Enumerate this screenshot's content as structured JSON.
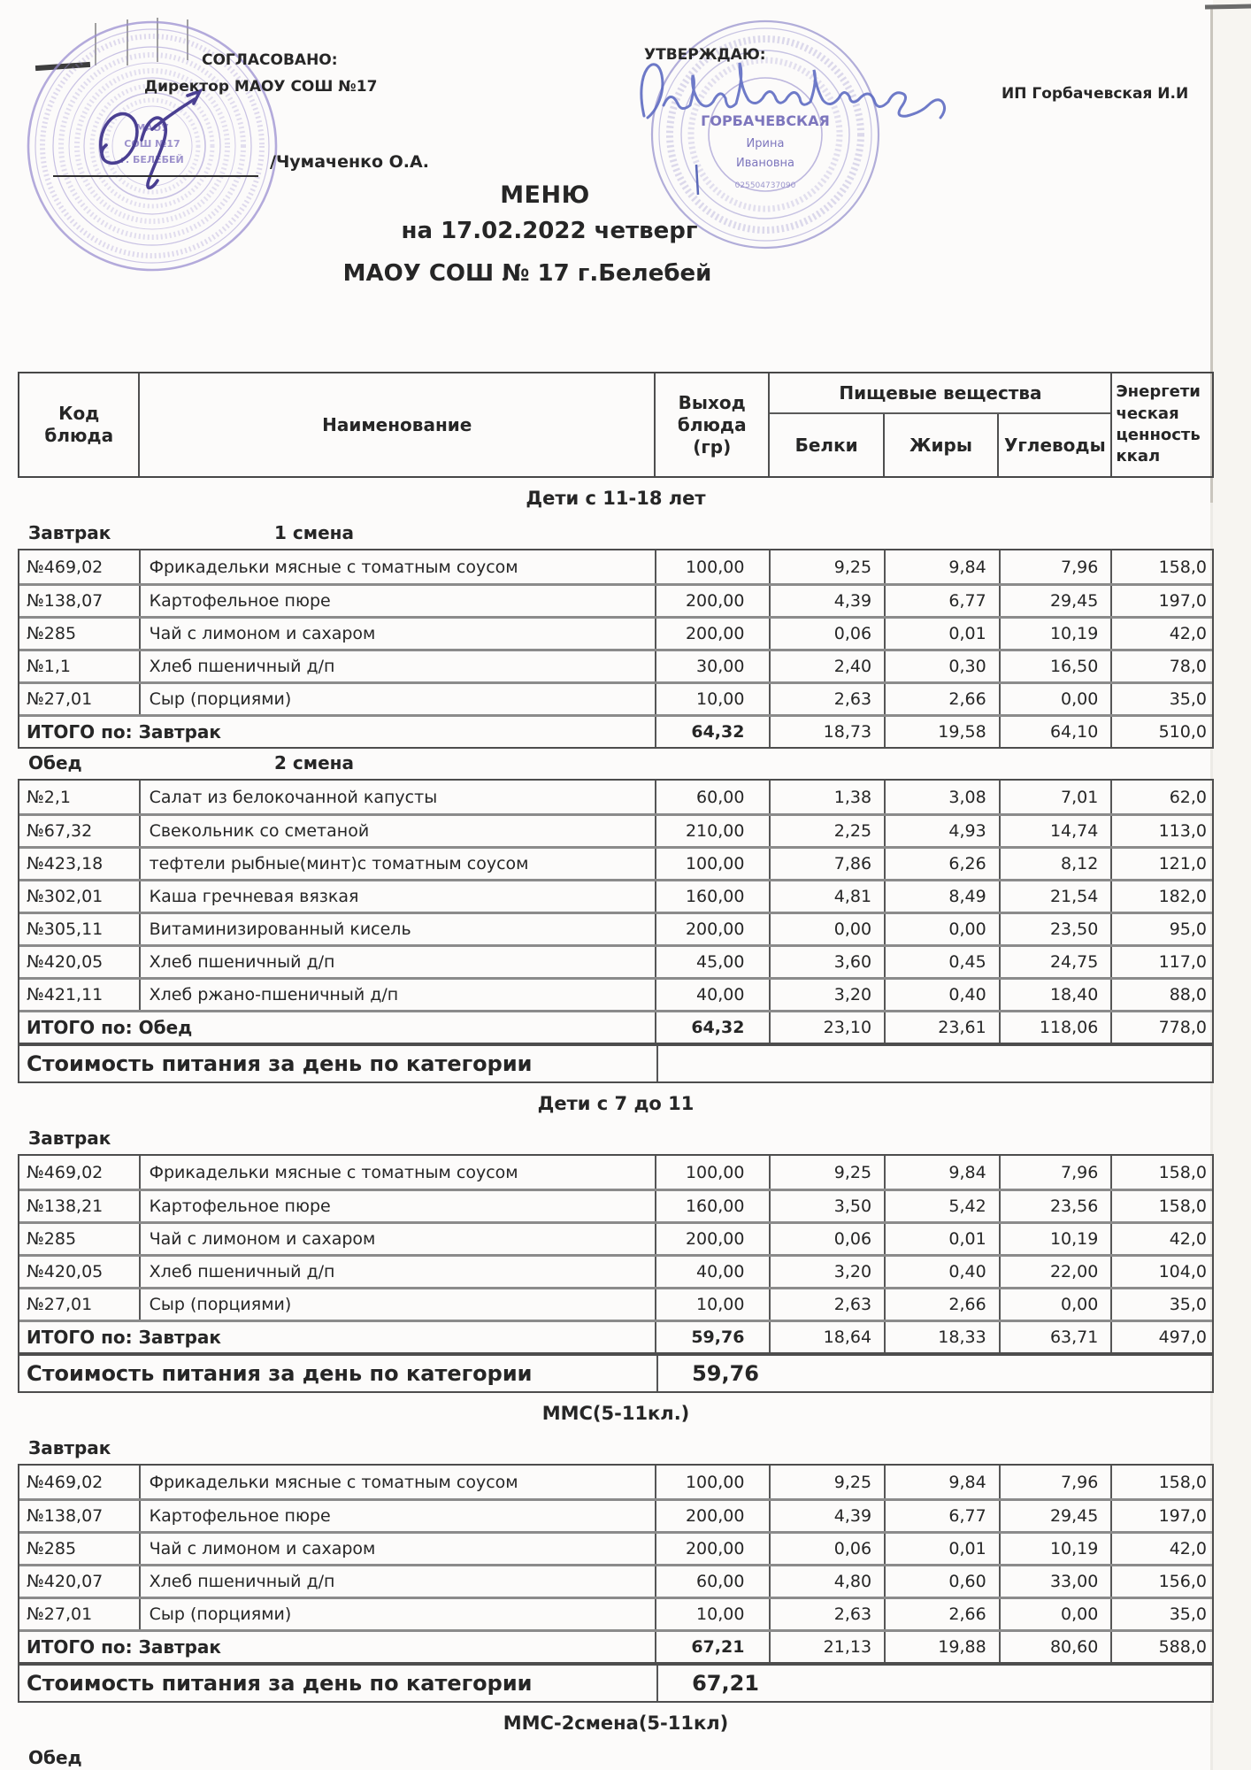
{
  "header": {
    "agreed_line1": "СОГЛАСОВАНО:",
    "agreed_line2": "Директор МАОУ СОШ №17",
    "agreed_signature": "/Чумаченко О.А.",
    "approve_label": "УТВЕРЖДАЮ:",
    "approve_entity": "ИП Горбачевская И.И",
    "left_stamp_lines": [
      "МАОУ",
      "СОШ №17",
      "г. БЕЛЕБЕЙ"
    ],
    "right_stamp_lines": [
      "ГОРБАЧЕВСКАЯ",
      "Ирина",
      "Ивановна"
    ],
    "right_stamp_inn": "025504737090"
  },
  "title": {
    "line1": "МЕНЮ",
    "line2": "на 17.02.2022  четверг",
    "line3": "МАОУ СОШ № 17 г.Белебей"
  },
  "table": {
    "headers": {
      "code": "Код\nблюда",
      "name": "Наименование",
      "output": "Выход\nблюда\n(гр)",
      "nutrients": "Пищевые вещества",
      "protein": "Белки",
      "fat": "Жиры",
      "carbs": "Углеводы",
      "energy": "Энергети\nческая\nценность\nккал"
    },
    "sections": [
      {
        "category": "Дети с 11-18 лет",
        "meals": [
          {
            "meal": "Завтрак",
            "shift": "1 смена",
            "rows": [
              [
                "№469,02",
                "Фрикадельки мясные с томатным соусом",
                "100,00",
                "9,25",
                "9,84",
                "7,96",
                "158,0"
              ],
              [
                "№138,07",
                "Картофельное  пюре",
                "200,00",
                "4,39",
                "6,77",
                "29,45",
                "197,0"
              ],
              [
                "№285",
                "Чай с лимоном и сахаром",
                "200,00",
                "0,06",
                "0,01",
                "10,19",
                "42,0"
              ],
              [
                "№1,1",
                "Хлеб пшеничный д/п",
                "30,00",
                "2,40",
                "0,30",
                "16,50",
                "78,0"
              ],
              [
                "№27,01",
                "Сыр (порциями)",
                "10,00",
                "2,63",
                "2,66",
                "0,00",
                "35,0"
              ]
            ],
            "total": {
              "label": "ИТОГО по: Завтрак",
              "values": [
                "64,32",
                "18,73",
                "19,58",
                "64,10",
                "510,0"
              ]
            }
          },
          {
            "meal": "Обед",
            "shift": "2 смена",
            "rows": [
              [
                "№2,1",
                "Салат из белокочанной капусты",
                "60,00",
                "1,38",
                "3,08",
                "7,01",
                "62,0"
              ],
              [
                "№67,32",
                "Свекольник  со  сметаной",
                "210,00",
                "2,25",
                "4,93",
                "14,74",
                "113,0"
              ],
              [
                "№423,18",
                "тефтели  рыбные(минт)с томатным соусом",
                "100,00",
                "7,86",
                "6,26",
                "8,12",
                "121,0"
              ],
              [
                "№302,01",
                "Каша гречневая вязкая",
                "160,00",
                "4,81",
                "8,49",
                "21,54",
                "182,0"
              ],
              [
                "№305,11",
                "Витаминизированный кисель",
                "200,00",
                "0,00",
                "0,00",
                "23,50",
                "95,0"
              ],
              [
                "№420,05",
                "Хлеб пшеничный д/п",
                "45,00",
                "3,60",
                "0,45",
                "24,75",
                "117,0"
              ],
              [
                "№421,11",
                "Хлеб ржано-пшеничный д/п",
                "40,00",
                "3,20",
                "0,40",
                "18,40",
                "88,0"
              ]
            ],
            "total": {
              "label": "ИТОГО по: Обед",
              "values": [
                "64,32",
                "23,10",
                "23,61",
                "118,06",
                "778,0"
              ]
            }
          }
        ],
        "cost": {
          "label": "Стоимость питания за день по категории",
          "value": ""
        }
      },
      {
        "category": "Дети с 7 до 11",
        "meals": [
          {
            "meal": "Завтрак",
            "shift": "",
            "rows": [
              [
                "№469,02",
                "Фрикадельки мясные с томатным соусом",
                "100,00",
                "9,25",
                "9,84",
                "7,96",
                "158,0"
              ],
              [
                "№138,21",
                "Картофельное  пюре",
                "160,00",
                "3,50",
                "5,42",
                "23,56",
                "158,0"
              ],
              [
                "№285",
                "Чай с лимоном и сахаром",
                "200,00",
                "0,06",
                "0,01",
                "10,19",
                "42,0"
              ],
              [
                "№420,05",
                "Хлеб пшеничный д/п",
                "40,00",
                "3,20",
                "0,40",
                "22,00",
                "104,0"
              ],
              [
                "№27,01",
                "Сыр (порциями)",
                "10,00",
                "2,63",
                "2,66",
                "0,00",
                "35,0"
              ]
            ],
            "total": {
              "label": "ИТОГО по: Завтрак",
              "values": [
                "59,76",
                "18,64",
                "18,33",
                "63,71",
                "497,0"
              ]
            }
          }
        ],
        "cost": {
          "label": "Стоимость питания за день по категории",
          "value": "59,76"
        }
      },
      {
        "category": "ММС(5-11кл.)",
        "meals": [
          {
            "meal": "Завтрак",
            "shift": "",
            "rows": [
              [
                "№469,02",
                "Фрикадельки мясные с томатным соусом",
                "100,00",
                "9,25",
                "9,84",
                "7,96",
                "158,0"
              ],
              [
                "№138,07",
                "Картофельное  пюре",
                "200,00",
                "4,39",
                "6,77",
                "29,45",
                "197,0"
              ],
              [
                "№285",
                "Чай с лимоном и сахаром",
                "200,00",
                "0,06",
                "0,01",
                "10,19",
                "42,0"
              ],
              [
                "№420,07",
                "Хлеб пшеничный д/п",
                "60,00",
                "4,80",
                "0,60",
                "33,00",
                "156,0"
              ],
              [
                "№27,01",
                "Сыр (порциями)",
                "10,00",
                "2,63",
                "2,66",
                "0,00",
                "35,0"
              ]
            ],
            "total": {
              "label": "ИТОГО по: Завтрак",
              "values": [
                "67,21",
                "21,13",
                "19,88",
                "80,60",
                "588,0"
              ]
            }
          }
        ],
        "cost": {
          "label": "Стоимость питания за день по категории",
          "value": "67,21"
        }
      },
      {
        "category": "ММС-2смена(5-11кл)",
        "meals": [
          {
            "meal": "Обед",
            "shift": "",
            "rows": [],
            "total": null
          }
        ],
        "cost": null
      }
    ]
  },
  "colors": {
    "stamp_purple": "#9b8fd0",
    "stamp_blue": "#928bcb",
    "signature_blue": "#5e6bc2",
    "signature_purple": "#4a3f92",
    "text": "#262626"
  }
}
